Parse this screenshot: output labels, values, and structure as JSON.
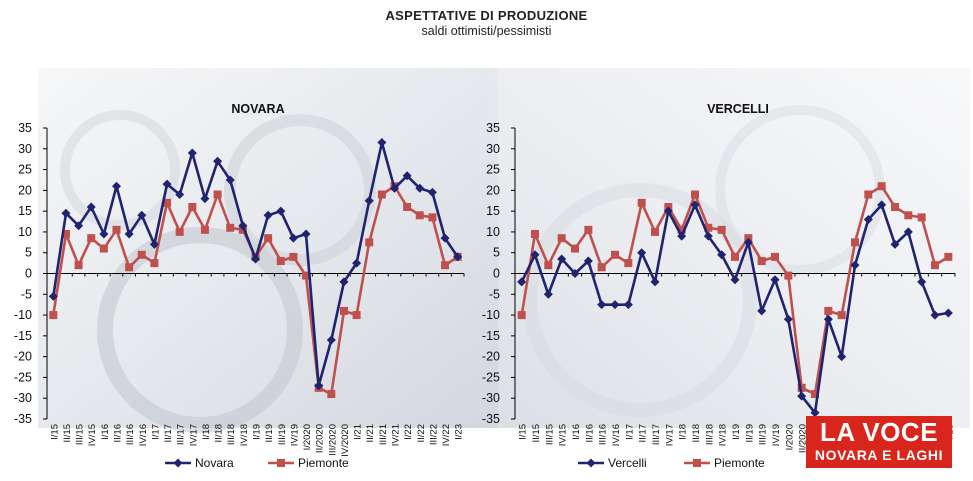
{
  "header": {
    "title": "ASPETTATIVE DI PRODUZIONE",
    "subtitle": "saldi ottimisti/pessimisti"
  },
  "logo": {
    "line1": "LA VOCE",
    "line2": "NOVARA E LAGHI",
    "color": "#d9261c"
  },
  "colors": {
    "navy": "#1f2370",
    "red": "#c0504d",
    "axis": "#000000"
  },
  "chart_data": [
    {
      "type": "line",
      "title": "NOVARA",
      "ylim": [
        -35,
        35
      ],
      "yticks": [
        -35,
        -30,
        -25,
        -20,
        -15,
        -10,
        -5,
        0,
        5,
        10,
        15,
        20,
        25,
        30,
        35
      ],
      "grid": false,
      "legend": "bottom",
      "categories": [
        "I/15",
        "II/15",
        "III/15",
        "IV/15",
        "I/16",
        "II/16",
        "III/16",
        "IV/16",
        "I/17",
        "II/17",
        "III/17",
        "IV/17",
        "I/18",
        "II/18",
        "III/18",
        "IV/18",
        "I/19",
        "II/19",
        "III/19",
        "IV/19",
        "I/2020",
        "II/2020",
        "III/2020",
        "IV/2020",
        "I/21",
        "II/21",
        "III/21",
        "IV/21",
        "I/22",
        "II/22",
        "III/22",
        "IV/22",
        "I/23"
      ],
      "series": [
        {
          "name": "Novara",
          "marker": "diamond",
          "values": [
            -5.5,
            14.5,
            11.5,
            16,
            9.5,
            21,
            9.5,
            14,
            7,
            21.5,
            19,
            29,
            18,
            27,
            22.5,
            11.5,
            3.5,
            14,
            15,
            8.5,
            9.5,
            -27,
            -16,
            -2,
            2.5,
            17.5,
            31.5,
            20.5,
            23.5,
            20.5,
            19.5,
            8.5,
            4
          ]
        },
        {
          "name": "Piemonte",
          "marker": "square",
          "values": [
            -10,
            9.5,
            2,
            8.5,
            6,
            10.5,
            1.5,
            4.5,
            2.5,
            17,
            10,
            16,
            10.5,
            19,
            11,
            10.5,
            4,
            8.5,
            3,
            4,
            -0.5,
            -27.5,
            -29,
            -9,
            -10,
            7.5,
            19,
            21,
            16,
            14,
            13.5,
            2,
            4
          ]
        }
      ]
    },
    {
      "type": "line",
      "title": "VERCELLI",
      "ylim": [
        -35,
        35
      ],
      "yticks": [
        -35,
        -30,
        -25,
        -20,
        -15,
        -10,
        -5,
        0,
        5,
        10,
        15,
        20,
        25,
        30,
        35
      ],
      "grid": false,
      "legend": "bottom",
      "categories": [
        "I/15",
        "II/15",
        "III/15",
        "IV/15",
        "I/16",
        "II/16",
        "III/16",
        "IV/16",
        "I/17",
        "II/17",
        "III/17",
        "IV/17",
        "I/18",
        "II/18",
        "III/18",
        "IV/18",
        "I/19",
        "II/19",
        "III/19",
        "IV/19",
        "I/2020",
        "II/2020",
        "III/2020",
        "IV/2020",
        "I/21",
        "II/21",
        "III/21",
        "IV/21",
        "I/22",
        "II/22",
        "III/22",
        "IV/22",
        "I/23"
      ],
      "series": [
        {
          "name": "Vercelli",
          "marker": "diamond",
          "values": [
            -2,
            4.5,
            -5,
            3.5,
            0,
            3,
            -7.5,
            -7.5,
            -7.5,
            5,
            -2,
            15,
            9,
            16.5,
            9,
            4.5,
            -1.5,
            7.5,
            -9,
            -1.5,
            -11,
            -29.5,
            -33.5,
            -11,
            -20,
            2,
            13,
            16.5,
            7,
            10,
            -2,
            -10,
            -9.5
          ]
        },
        {
          "name": "Piemonte",
          "marker": "square",
          "values": [
            -10,
            9.5,
            2,
            8.5,
            6,
            10.5,
            1.5,
            4.5,
            2.5,
            17,
            10,
            16,
            10.5,
            19,
            11,
            10.5,
            4,
            8.5,
            3,
            4,
            -0.5,
            -27.5,
            -29,
            -9,
            -10,
            7.5,
            19,
            21,
            16,
            14,
            13.5,
            2,
            4
          ]
        }
      ]
    }
  ]
}
